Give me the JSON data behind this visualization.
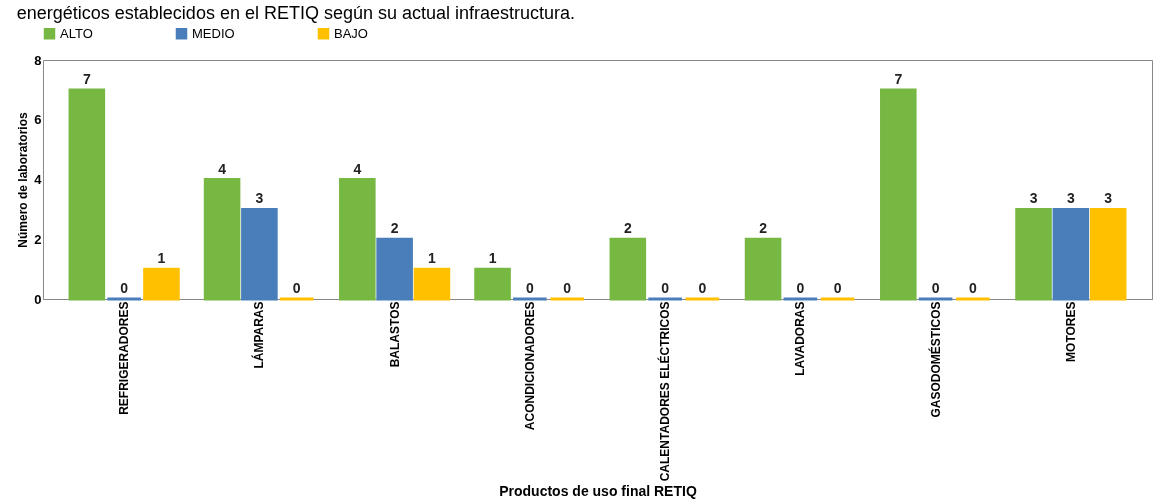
{
  "chart_data": {
    "type": "bar",
    "title": "energéticos establecidos en el RETIQ según su actual infraestructura.",
    "xlabel": "Productos de uso final RETIQ",
    "ylabel": "Número de laboratorios",
    "categories": [
      "REFRIGERADORES",
      "LÁMPARAS",
      "BALASTOS",
      "ACONDICIONADORES",
      "CALENTADORES ELÉCTRICOS",
      "LAVADORAS",
      "GASODOMÉSTICOS",
      "MOTORES"
    ],
    "series": [
      {
        "name": "ALTO",
        "color": "#77b843",
        "values": [
          7,
          4,
          4,
          1,
          2,
          2,
          7,
          3
        ]
      },
      {
        "name": "MEDIO",
        "color": "#4a7ebb",
        "values": [
          0,
          3,
          2,
          0,
          0,
          0,
          0,
          3
        ]
      },
      {
        "name": "BAJO",
        "color": "#ffc000",
        "values": [
          1,
          0,
          1,
          0,
          0,
          0,
          0,
          3
        ]
      }
    ],
    "ylim": [
      0,
      8
    ],
    "yticks": [
      0,
      2,
      4,
      6,
      8
    ],
    "data_labels": true,
    "legend": "top",
    "grid": false
  }
}
